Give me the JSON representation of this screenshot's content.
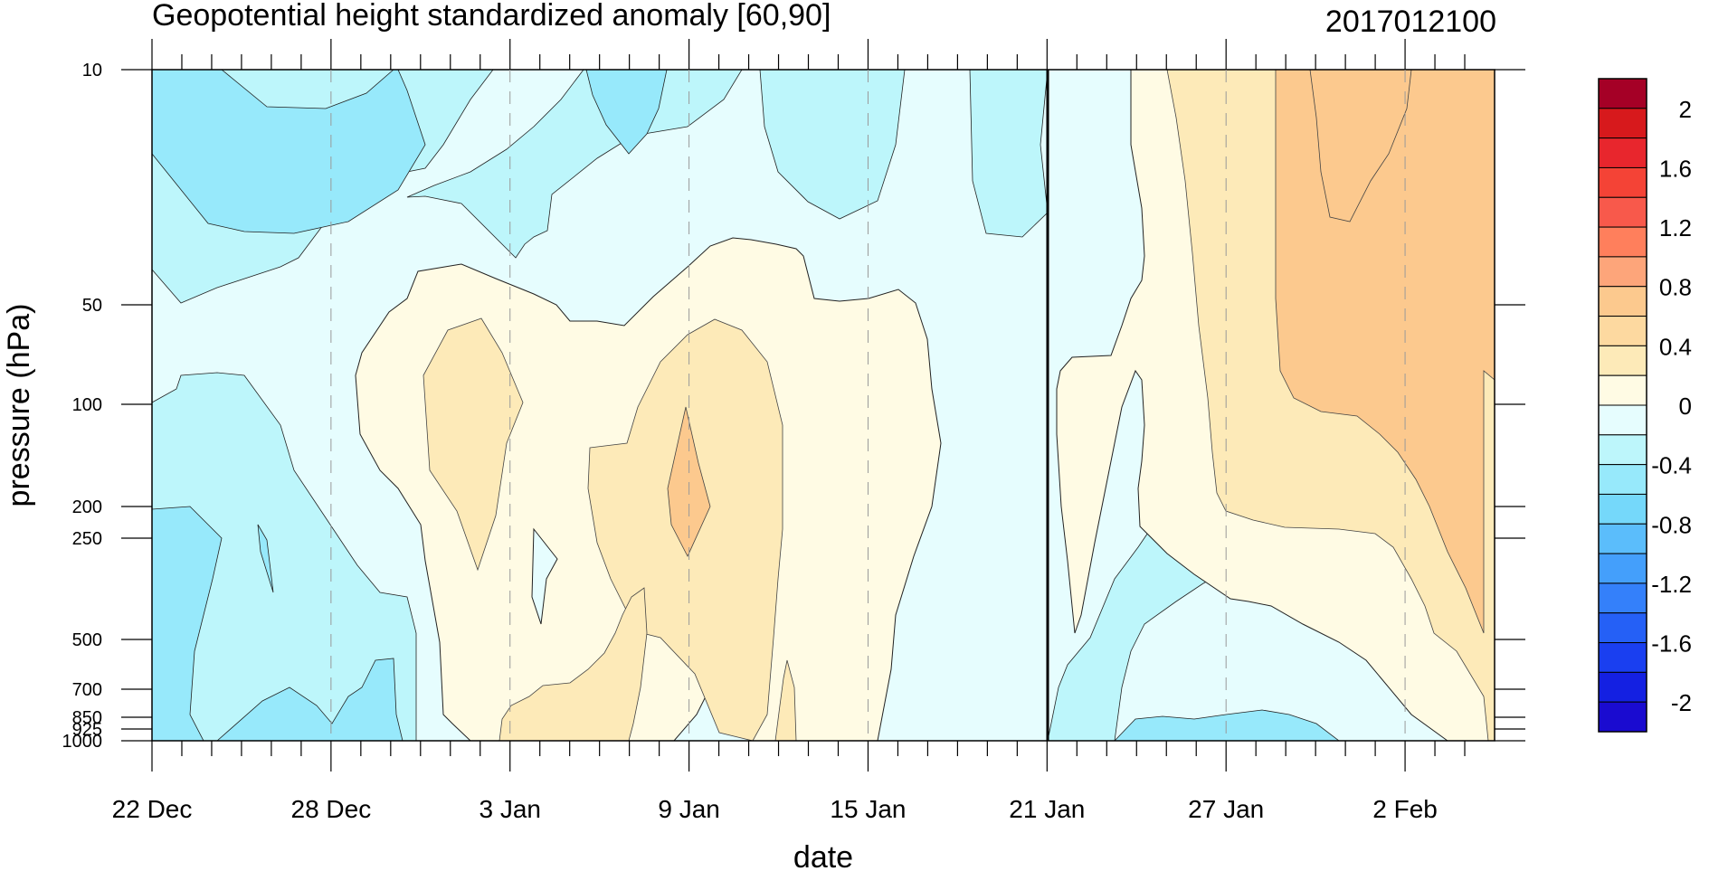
{
  "chart_data": {
    "type": "heatmap",
    "title": "Geopotential height standardized anomaly [60,90]",
    "right_title": "2017012100",
    "xlabel": "date",
    "ylabel": "pressure (hPa)",
    "x_ticks": [
      "22 Dec",
      "28 Dec",
      "3 Jan",
      "9 Jan",
      "15 Jan",
      "21 Jan",
      "27 Jan",
      "2 Feb"
    ],
    "x_range_days": [
      0,
      45
    ],
    "y_axis": {
      "scale": "log-like (reversed)",
      "ticks": [
        "10",
        "50",
        "100",
        "200",
        "250",
        "500",
        "700",
        "850",
        "925",
        "1000"
      ]
    },
    "marker_line": "21 Jan",
    "colorbar": {
      "labels": [
        "2",
        "1.6",
        "1.2",
        "0.8",
        "0.4",
        "0",
        "-0.4",
        "-0.8",
        "-1.2",
        "-1.6",
        "-2"
      ],
      "colors": [
        "#a50026",
        "#d7191c",
        "#e8262d",
        "#f44336",
        "#f8594b",
        "#ff7f5c",
        "#fda57a",
        "#fcc98e",
        "#fdd9a0",
        "#fdeab8",
        "#fffbe4",
        "#e6fdfe",
        "#bdf6fb",
        "#97e9fb",
        "#75d8fa",
        "#5bbdfb",
        "#449ffb",
        "#3480fa",
        "#2560f6",
        "#1a3ff0",
        "#1420e2",
        "#1a0bd0"
      ],
      "bounds": [
        -2.2,
        2.2
      ]
    },
    "grid": "dashed vertical at date ticks",
    "regions": [
      {
        "level": "-0.6",
        "color": "#97e9fb",
        "note": "upper-left stratosphere 22-31 Dec"
      },
      {
        "level": "-0.6",
        "color": "#97e9fb",
        "note": "lower troposphere 22-31 Dec"
      },
      {
        "level": "0.2",
        "color": "#fffbe4",
        "note": "mid-levels 29 Dec - 16 Jan"
      },
      {
        "level": "0.6",
        "color": "#fdeab8",
        "note": "mid-levels around 2 Jan and 8-11 Jan"
      },
      {
        "level": "0.8",
        "color": "#fcc98e",
        "note": "9 Jan around 200 hPa"
      },
      {
        "level": "0.2",
        "color": "#fffbe4",
        "note": "after 21 Jan upper levels"
      },
      {
        "level": "0.6",
        "color": "#fdeab8",
        "note": "late Jan upper levels"
      },
      {
        "level": "1.0",
        "color": "#fcc98e",
        "note": "late Jan - early Feb stratosphere"
      }
    ]
  }
}
